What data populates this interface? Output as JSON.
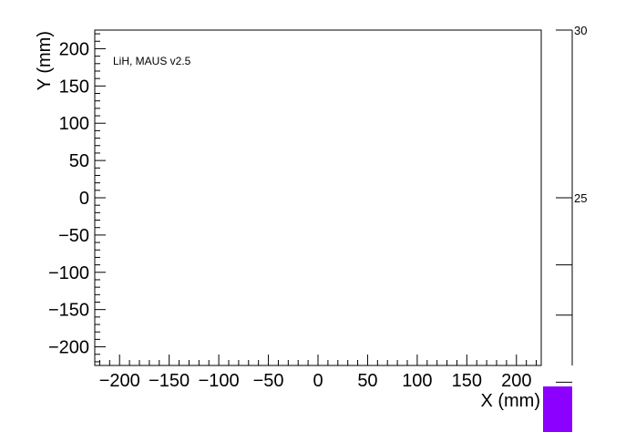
{
  "chart_data": {
    "type": "heatmap",
    "title": "",
    "xlabel": "X (mm)",
    "ylabel": "Y (mm)",
    "xlim": [
      -225,
      225
    ],
    "ylim": [
      -225,
      225
    ],
    "xticks": [
      -200,
      -150,
      -100,
      -50,
      0,
      50,
      100,
      150,
      200
    ],
    "xtick_labels": [
      "−200",
      "−150",
      "−100",
      "−50",
      "0",
      "50",
      "100",
      "150",
      "200"
    ],
    "yticks": [
      -200,
      -150,
      -100,
      -50,
      0,
      50,
      100,
      150,
      200
    ],
    "ytick_labels": [
      "−200",
      "−150",
      "−100",
      "−50",
      "0",
      "50",
      "100",
      "150",
      "200"
    ],
    "annotation": "LiH, MAUS v2.5",
    "palette": {
      "range": [
        20,
        30
      ],
      "labeled_ticks": [
        {
          "value": 30,
          "label": "30"
        },
        {
          "value": 25,
          "label": "25"
        }
      ],
      "unlabeled_ticks": [
        23,
        21.5,
        19.5
      ],
      "visible_swatch_color": "#8b00ff"
    },
    "values": [],
    "grid": false,
    "legend": "none"
  }
}
